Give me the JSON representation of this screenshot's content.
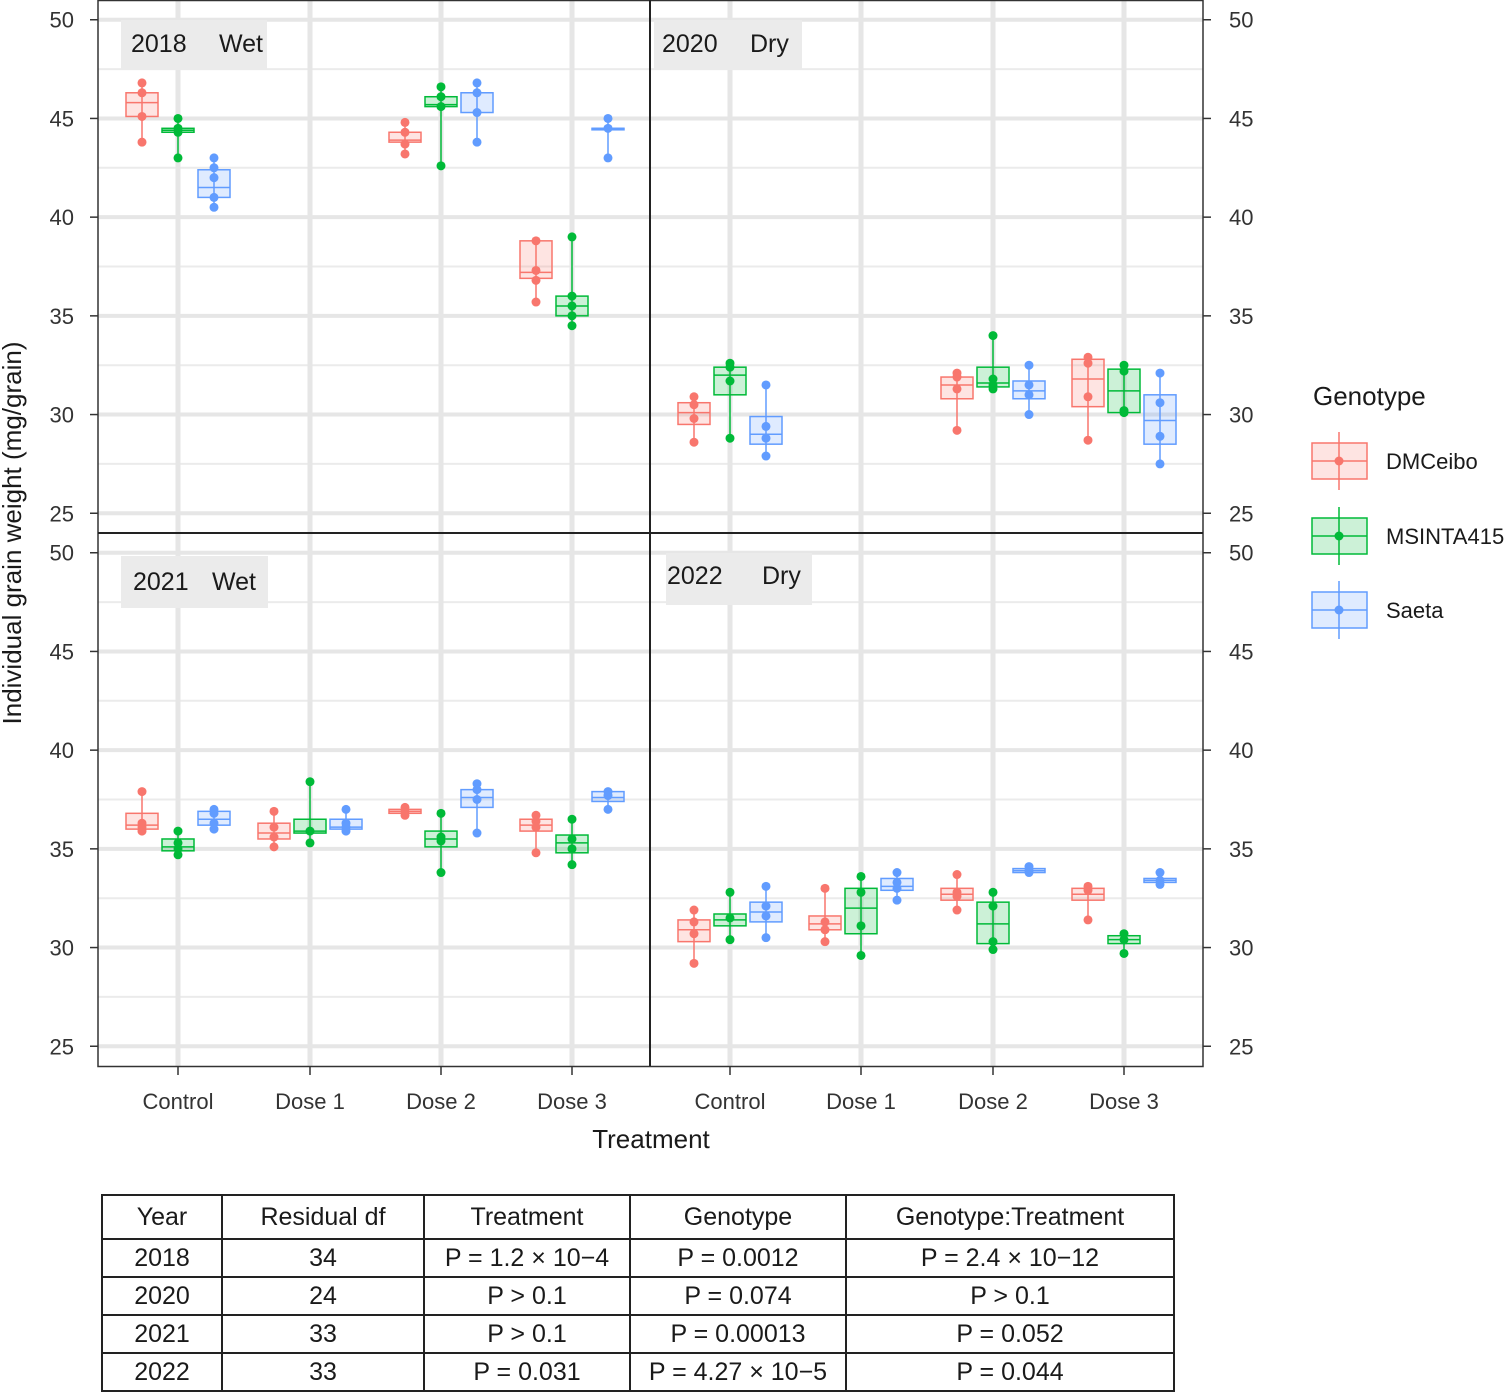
{
  "chart_data": {
    "type": "boxplot",
    "ylabel": "Individual grain weight (mg/grain)",
    "xlabel": "Treatment",
    "ylim": [
      24,
      51
    ],
    "yticks": [
      25,
      30,
      35,
      40,
      45,
      50
    ],
    "categories": [
      "Control",
      "Dose 1",
      "Dose 2",
      "Dose 3"
    ],
    "legend": {
      "title": "Genotype",
      "position": "right",
      "items": [
        {
          "name": "DMCeibo",
          "color": "#F8766D"
        },
        {
          "name": "MSINTA415",
          "color": "#00BA38"
        },
        {
          "name": "Saeta",
          "color": "#619CFF"
        }
      ]
    },
    "panels": [
      {
        "year": "2018",
        "condition": "Wet",
        "groups": [
          {
            "category": "Control",
            "genotype": "DMCeibo",
            "box": [
              45.1,
              45.8,
              46.3
            ],
            "points": [
              46.8,
              46.3,
              45.1,
              43.8
            ]
          },
          {
            "category": "Control",
            "genotype": "MSINTA415",
            "box": [
              44.3,
              44.4,
              44.5
            ],
            "points": [
              45.0,
              44.5,
              44.3,
              43.0
            ]
          },
          {
            "category": "Control",
            "genotype": "Saeta",
            "box": [
              41.0,
              41.5,
              42.4
            ],
            "points": [
              43.0,
              42.5,
              42.0,
              41.0,
              40.5
            ]
          },
          {
            "category": "Dose 2",
            "genotype": "DMCeibo",
            "box": [
              43.8,
              43.9,
              44.3
            ],
            "points": [
              44.8,
              44.3,
              43.7,
              43.2
            ]
          },
          {
            "category": "Dose 2",
            "genotype": "MSINTA415",
            "box": [
              45.6,
              45.7,
              46.1
            ],
            "points": [
              46.6,
              46.1,
              45.6,
              42.6
            ]
          },
          {
            "category": "Dose 2",
            "genotype": "Saeta",
            "box": [
              45.3,
              46.3,
              46.3
            ],
            "points": [
              46.8,
              46.3,
              45.3,
              43.8
            ]
          },
          {
            "category": "Dose 3",
            "genotype": "DMCeibo",
            "box": [
              36.9,
              37.2,
              38.8
            ],
            "points": [
              38.8,
              37.3,
              36.8,
              35.7
            ]
          },
          {
            "category": "Dose 3",
            "genotype": "MSINTA415",
            "box": [
              35.0,
              35.5,
              36.0
            ],
            "points": [
              39.0,
              36.0,
              35.5,
              35.0,
              34.5
            ]
          },
          {
            "category": "Dose 3",
            "genotype": "Saeta",
            "box": [
              44.5,
              44.5,
              44.5
            ],
            "points": [
              45.0,
              44.5,
              43.0
            ]
          }
        ]
      },
      {
        "year": "2020",
        "condition": "Dry",
        "groups": [
          {
            "category": "Control",
            "genotype": "DMCeibo",
            "box": [
              29.5,
              30.1,
              30.6
            ],
            "points": [
              30.9,
              30.5,
              29.8,
              28.6
            ]
          },
          {
            "category": "Control",
            "genotype": "MSINTA415",
            "box": [
              31.0,
              32.0,
              32.4
            ],
            "points": [
              32.6,
              32.4,
              31.7,
              28.8
            ]
          },
          {
            "category": "Control",
            "genotype": "Saeta",
            "box": [
              28.5,
              29.0,
              29.9
            ],
            "points": [
              31.5,
              29.4,
              28.8,
              27.9
            ]
          },
          {
            "category": "Dose 2",
            "genotype": "DMCeibo",
            "box": [
              30.8,
              31.5,
              31.9
            ],
            "points": [
              32.1,
              31.9,
              31.3,
              29.2
            ]
          },
          {
            "category": "Dose 2",
            "genotype": "MSINTA415",
            "box": [
              31.4,
              31.6,
              32.4
            ],
            "points": [
              34.0,
              31.8,
              31.5,
              31.3
            ]
          },
          {
            "category": "Dose 2",
            "genotype": "Saeta",
            "box": [
              30.8,
              31.2,
              31.7
            ],
            "points": [
              32.5,
              31.5,
              31.0,
              30.0
            ]
          },
          {
            "category": "Dose 3",
            "genotype": "DMCeibo",
            "box": [
              30.4,
              31.8,
              32.8
            ],
            "points": [
              32.9,
              32.6,
              30.9,
              28.7
            ]
          },
          {
            "category": "Dose 3",
            "genotype": "MSINTA415",
            "box": [
              30.1,
              31.2,
              32.3
            ],
            "points": [
              32.5,
              32.2,
              30.2,
              30.1
            ]
          },
          {
            "category": "Dose 3",
            "genotype": "Saeta",
            "box": [
              28.5,
              29.7,
              31.0
            ],
            "points": [
              32.1,
              30.6,
              28.9,
              27.5
            ]
          }
        ]
      },
      {
        "year": "2021",
        "condition": "Wet",
        "groups": [
          {
            "category": "Control",
            "genotype": "DMCeibo",
            "box": [
              36.0,
              36.2,
              36.8
            ],
            "points": [
              37.9,
              36.3,
              36.1,
              35.9
            ]
          },
          {
            "category": "Control",
            "genotype": "MSINTA415",
            "box": [
              34.9,
              35.1,
              35.5
            ],
            "points": [
              35.9,
              35.3,
              35.0,
              34.7
            ]
          },
          {
            "category": "Control",
            "genotype": "Saeta",
            "box": [
              36.2,
              36.5,
              36.9
            ],
            "points": [
              37.0,
              36.8,
              36.3,
              36.0
            ]
          },
          {
            "category": "Dose 1",
            "genotype": "DMCeibo",
            "box": [
              35.5,
              35.8,
              36.3
            ],
            "points": [
              36.9,
              36.1,
              35.6,
              35.1
            ]
          },
          {
            "category": "Dose 1",
            "genotype": "MSINTA415",
            "box": [
              35.8,
              35.9,
              36.5
            ],
            "points": [
              38.4,
              35.9,
              35.3
            ]
          },
          {
            "category": "Dose 1",
            "genotype": "Saeta",
            "box": [
              36.0,
              36.1,
              36.5
            ],
            "points": [
              37.0,
              36.3,
              36.1,
              35.9
            ]
          },
          {
            "category": "Dose 2",
            "genotype": "DMCeibo",
            "box": [
              36.8,
              36.9,
              37.0
            ],
            "points": [
              37.1,
              36.9,
              36.7
            ]
          },
          {
            "category": "Dose 2",
            "genotype": "MSINTA415",
            "box": [
              35.1,
              35.5,
              35.9
            ],
            "points": [
              36.8,
              35.6,
              35.4,
              33.8
            ]
          },
          {
            "category": "Dose 2",
            "genotype": "Saeta",
            "box": [
              37.1,
              37.6,
              38.0
            ],
            "points": [
              38.3,
              38.0,
              37.5,
              35.8
            ]
          },
          {
            "category": "Dose 3",
            "genotype": "DMCeibo",
            "box": [
              35.9,
              36.2,
              36.5
            ],
            "points": [
              36.7,
              36.4,
              36.1,
              34.8
            ]
          },
          {
            "category": "Dose 3",
            "genotype": "MSINTA415",
            "box": [
              34.8,
              35.3,
              35.7
            ],
            "points": [
              36.5,
              35.5,
              35.0,
              34.2
            ]
          },
          {
            "category": "Dose 3",
            "genotype": "Saeta",
            "box": [
              37.4,
              37.6,
              37.9
            ],
            "points": [
              37.9,
              37.7,
              37.0
            ]
          }
        ]
      },
      {
        "year": "2022",
        "condition": "Dry",
        "groups": [
          {
            "category": "Control",
            "genotype": "DMCeibo",
            "box": [
              30.3,
              30.9,
              31.4
            ],
            "points": [
              31.9,
              31.3,
              30.7,
              29.2
            ]
          },
          {
            "category": "Control",
            "genotype": "MSINTA415",
            "box": [
              31.1,
              31.4,
              31.7
            ],
            "points": [
              32.8,
              31.5,
              30.4
            ]
          },
          {
            "category": "Control",
            "genotype": "Saeta",
            "box": [
              31.3,
              31.8,
              32.3
            ],
            "points": [
              33.1,
              32.1,
              31.6,
              30.5
            ]
          },
          {
            "category": "Dose 1",
            "genotype": "DMCeibo",
            "box": [
              30.9,
              31.2,
              31.6
            ],
            "points": [
              33.0,
              31.3,
              30.9,
              30.3
            ]
          },
          {
            "category": "Dose 1",
            "genotype": "MSINTA415",
            "box": [
              30.7,
              32.0,
              33.0
            ],
            "points": [
              33.6,
              32.8,
              31.1,
              29.6
            ]
          },
          {
            "category": "Dose 1",
            "genotype": "Saeta",
            "box": [
              32.9,
              33.1,
              33.5
            ],
            "points": [
              33.8,
              33.3,
              33.0,
              32.4
            ]
          },
          {
            "category": "Dose 2",
            "genotype": "DMCeibo",
            "box": [
              32.4,
              32.7,
              33.0
            ],
            "points": [
              33.7,
              32.8,
              32.6,
              31.9
            ]
          },
          {
            "category": "Dose 2",
            "genotype": "MSINTA415",
            "box": [
              30.2,
              31.2,
              32.3
            ],
            "points": [
              32.8,
              32.1,
              30.3,
              29.9
            ]
          },
          {
            "category": "Dose 2",
            "genotype": "Saeta",
            "box": [
              33.8,
              33.9,
              34.0
            ],
            "points": [
              34.1,
              33.9,
              33.8
            ]
          },
          {
            "category": "Dose 3",
            "genotype": "DMCeibo",
            "box": [
              32.4,
              32.7,
              33.0
            ],
            "points": [
              33.1,
              32.9,
              31.4
            ]
          },
          {
            "category": "Dose 3",
            "genotype": "MSINTA415",
            "box": [
              30.2,
              30.4,
              30.6
            ],
            "points": [
              30.7,
              30.4,
              29.7
            ]
          },
          {
            "category": "Dose 3",
            "genotype": "Saeta",
            "box": [
              33.3,
              33.4,
              33.5
            ],
            "points": [
              33.8,
              33.4,
              33.2
            ]
          }
        ]
      }
    ]
  },
  "table": {
    "headers": [
      "Year",
      "Residual df",
      "Treatment",
      "Genotype",
      "Genotype:Treatment"
    ],
    "rows": [
      [
        "2018",
        "34",
        "P = 1.2 × 10−4",
        "P = 0.0012",
        "P = 2.4 × 10−12"
      ],
      [
        "2020",
        "24",
        "P > 0.1",
        "P = 0.074",
        "P > 0.1"
      ],
      [
        "2021",
        "33",
        "P > 0.1",
        "P = 0.00013",
        "P = 0.052"
      ],
      [
        "2022",
        "33",
        "P = 0.031",
        "P = 4.27 × 10−5",
        "P = 0.044"
      ]
    ]
  }
}
